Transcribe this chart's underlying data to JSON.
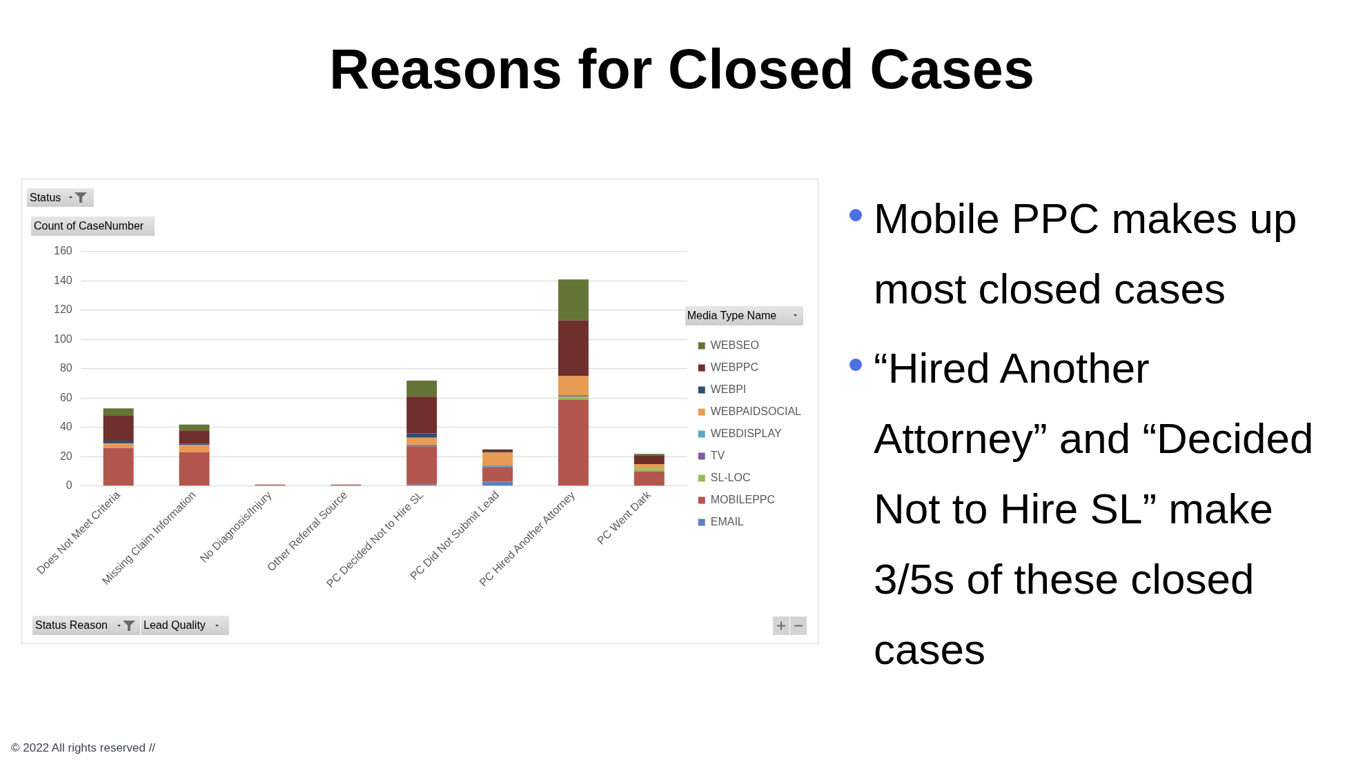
{
  "chart_data": [
    {
      "type": "bar",
      "title": "Reasons for Closed Cases",
      "xlabel": "Status Reason",
      "ylabel": "Count of CaseNumber",
      "legend_title": "Media Type Name",
      "categories": [
        "Does Not Meet Criteria",
        "Missing Claim Information",
        "No Diagnosis/Injury",
        "Other Referral Source",
        "PC Decided Not to Hire SL",
        "PC Did Not Submit Lead",
        "PC Hired Another Attorney",
        "PC Went Dark"
      ],
      "series": [
        {
          "name": "EMAIL",
          "color": "#5b82c0",
          "values": [
            null,
            null,
            null,
            null,
            1,
            3,
            null,
            null
          ]
        },
        {
          "name": "MOBILEPPC",
          "color": "#b3564e",
          "values": [
            26,
            23,
            1,
            1,
            26,
            10,
            59,
            10
          ]
        },
        {
          "name": "SL-LOC",
          "color": "#9bbb59",
          "values": [
            null,
            null,
            null,
            null,
            null,
            null,
            2,
            2
          ]
        },
        {
          "name": "TV",
          "color": "#7d5fa0",
          "values": [
            null,
            null,
            null,
            null,
            1,
            null,
            1,
            null
          ]
        },
        {
          "name": "WEBDISPLAY",
          "color": "#5aa8c5",
          "values": [
            null,
            null,
            null,
            null,
            null,
            1,
            null,
            null
          ]
        },
        {
          "name": "WEBPAIDSOCIAL",
          "color": "#e89b55",
          "values": [
            3,
            5,
            null,
            null,
            5,
            9,
            13,
            3
          ]
        },
        {
          "name": "WEBPI",
          "color": "#334d74",
          "values": [
            2,
            1,
            null,
            null,
            3,
            1,
            null,
            null
          ]
        },
        {
          "name": "WEBPPC",
          "color": "#6f2f2c",
          "values": [
            17,
            9,
            null,
            null,
            25,
            1,
            38,
            6
          ]
        },
        {
          "name": "WEBSEO",
          "color": "#637437",
          "values": [
            5,
            4,
            null,
            null,
            11,
            null,
            28,
            1
          ]
        }
      ],
      "stacked": true,
      "ylim": [
        0,
        160
      ],
      "yticks": [
        0,
        20,
        40,
        60,
        80,
        100,
        120,
        140,
        160
      ],
      "grid": "y",
      "legend": "right",
      "annotations": [
        "Status",
        "Lead Quality",
        "© 2022 All rights reserved //"
      ]
    },
    {
      "type": "other",
      "annotations": [
        "Mobile PPC makes up most closed cases",
        "“Hired Another Attorney” and “Decided Not to Hire SL” make 3/5s of these closed cases"
      ]
    }
  ]
}
